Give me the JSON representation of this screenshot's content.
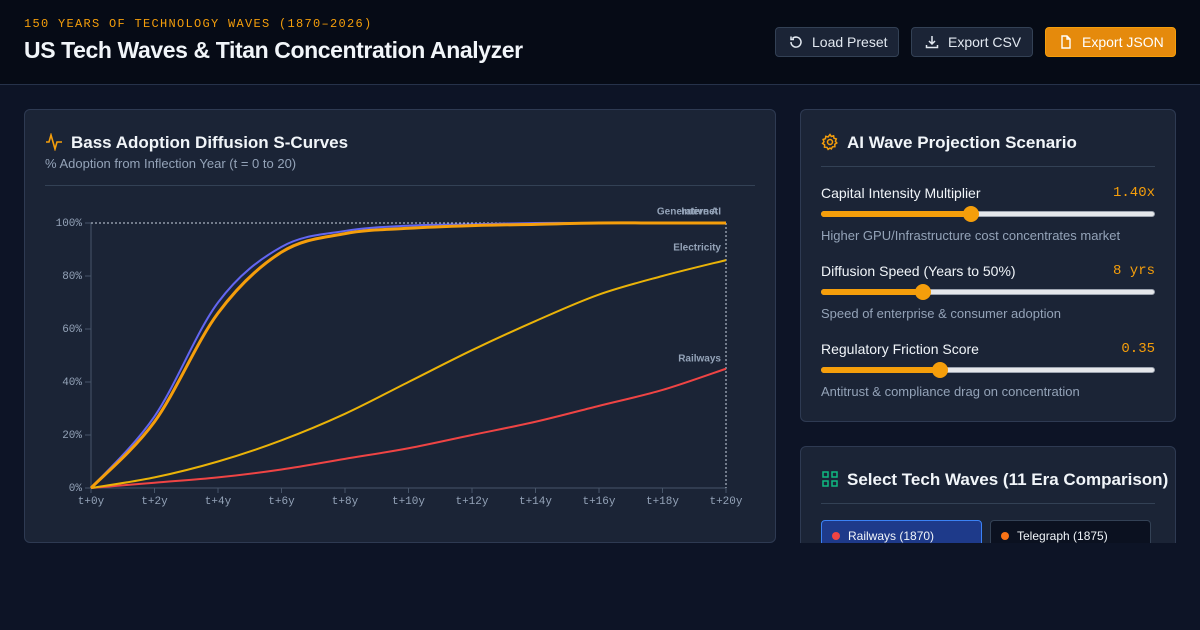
{
  "header": {
    "eyebrow": "150 YEARS OF TECHNOLOGY WAVES (1870–2026)",
    "title": "US Tech Waves & Titan Concentration Analyzer",
    "buttons": [
      "Load Preset",
      "Export CSV",
      "Export JSON"
    ]
  },
  "chart_data": {
    "type": "line",
    "title": "Bass Adoption Diffusion S-Curves",
    "subtitle": "% Adoption from Inflection Year (t = 0 to 20)",
    "categories": [
      "t+0y",
      "t+2y",
      "t+4y",
      "t+6y",
      "t+8y",
      "t+10y",
      "t+12y",
      "t+14y",
      "t+16y",
      "t+18y",
      "t+20y"
    ],
    "ylim": [
      0,
      100
    ],
    "yticks": [
      {
        "value": 0,
        "label": "0%"
      },
      {
        "value": 20,
        "label": "20%"
      },
      {
        "value": 40,
        "label": "40%"
      },
      {
        "value": 60,
        "label": "60%"
      },
      {
        "value": 80,
        "label": "80%"
      },
      {
        "value": 100,
        "label": "100%"
      }
    ],
    "series": [
      {
        "name": "Generative AI",
        "color": "#f59e0b",
        "values": [
          0,
          25,
          66,
          89,
          96,
          98,
          99,
          99.5,
          100,
          100,
          100
        ]
      },
      {
        "name": "Internet",
        "color": "#6366f1",
        "values": [
          0,
          27,
          70,
          91,
          97,
          99,
          99.5,
          100,
          100,
          100,
          100
        ]
      },
      {
        "name": "Electricity",
        "color": "#eab308",
        "values": [
          0,
          4,
          10,
          18,
          28,
          40,
          52,
          63,
          73,
          80,
          86
        ]
      },
      {
        "name": "Railways",
        "color": "#ef4444",
        "values": [
          0,
          2,
          4,
          7,
          11,
          15,
          20,
          25,
          31,
          37,
          45
        ]
      }
    ]
  },
  "scenario": {
    "title": "AI Wave Projection Scenario",
    "sliders": [
      {
        "label": "Capital Intensity Multiplier",
        "value_label": "1.40x",
        "description": "Higher GPU/Infrastructure cost concentrates market"
      },
      {
        "label": "Diffusion Speed (Years to 50%)",
        "value_label": "8 yrs",
        "description": "Speed of enterprise & consumer adoption"
      },
      {
        "label": "Regulatory Friction Score",
        "value_label": "0.35",
        "description": "Antitrust & compliance drag on concentration"
      }
    ]
  },
  "waves": {
    "title": "Select Tech Waves (11 Era Comparison)",
    "chips": [
      "Railways (1870)",
      "Telegraph (1875)"
    ]
  }
}
